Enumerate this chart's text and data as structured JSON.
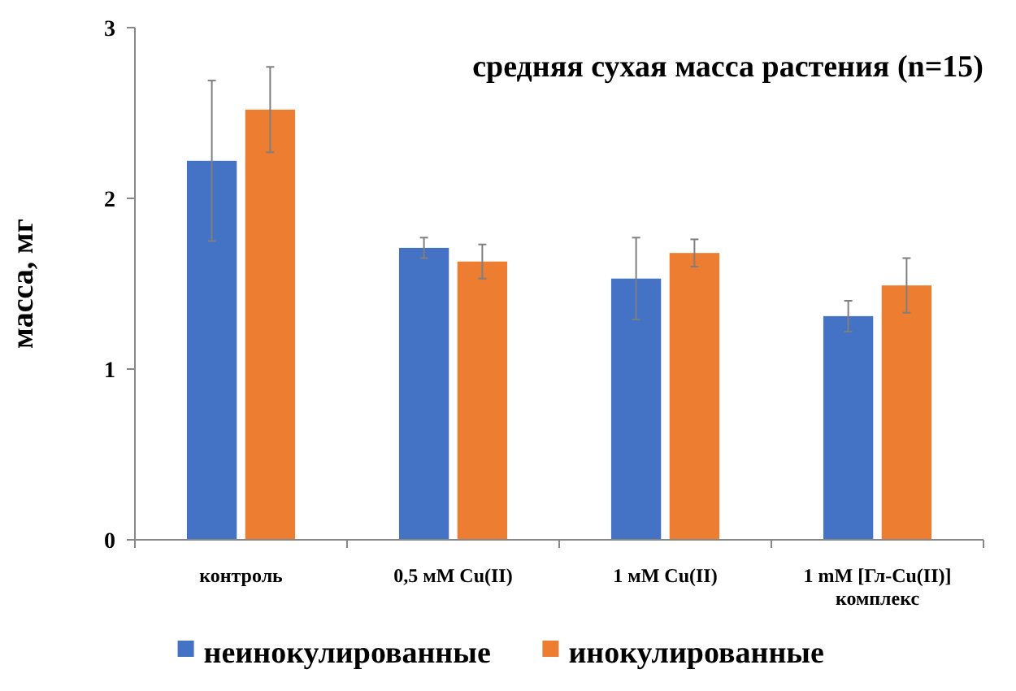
{
  "chart_data": {
    "type": "bar",
    "title": "средняя сухая масса растения (n=15)",
    "ylabel": "масса, мг",
    "categories": [
      "контроль",
      "0,5 мМ Cu(II)",
      "1 мМ Cu(II)",
      "1 mM [Гл-Cu(II)] комплекс"
    ],
    "series": [
      {
        "name": "неинокулированные",
        "color": "#4472c4",
        "values": [
          2.22,
          1.71,
          1.53,
          1.31
        ],
        "errors": [
          0.47,
          0.06,
          0.24,
          0.09
        ]
      },
      {
        "name": "инокулированные",
        "color": "#ed7d31",
        "values": [
          2.52,
          1.63,
          1.68,
          1.49
        ],
        "errors": [
          0.25,
          0.1,
          0.08,
          0.16
        ]
      }
    ],
    "ylim": [
      0,
      3
    ],
    "yticks": [
      0,
      1,
      2,
      3
    ],
    "grid": false,
    "legend": "bottom"
  }
}
